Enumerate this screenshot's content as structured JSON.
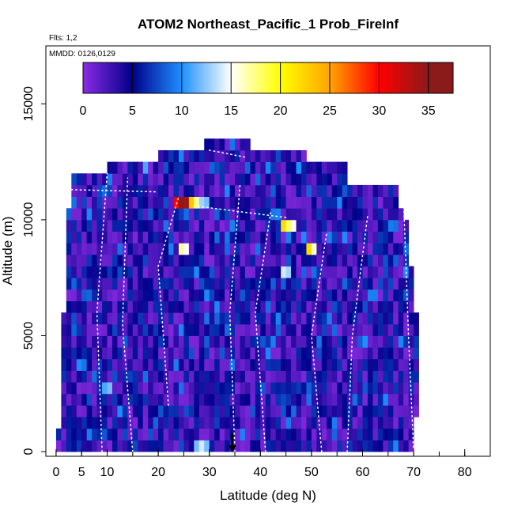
{
  "chart_data": {
    "type": "heatmap",
    "title": "ATOM2 Northeast_Pacific_1 Prob_FireInf",
    "annotations": {
      "flights": "Flts: 1,2",
      "dates": "MMDD: 0126,0129"
    },
    "xlabel": "Latitude (deg N)",
    "ylabel": "Altitude (m)",
    "xlim": [
      -2,
      85
    ],
    "ylim": [
      -200,
      17500
    ],
    "x_ticks": [
      0,
      5,
      10,
      20,
      30,
      40,
      50,
      60,
      70,
      80
    ],
    "y_ticks": [
      0,
      5000,
      10000,
      15000
    ],
    "x_minor_ticks": [
      0,
      5,
      10,
      15,
      20,
      25,
      30,
      35,
      40,
      45,
      50,
      55,
      60,
      65,
      70,
      75,
      80,
      85
    ],
    "colorbar": {
      "min": 0,
      "max": 37.5,
      "ticks": [
        0,
        5,
        10,
        15,
        20,
        25,
        30,
        35
      ],
      "boundaries": [
        0,
        5,
        10,
        15,
        20,
        25,
        30,
        35
      ],
      "colors": [
        "#8a2be2",
        "#00008b",
        "#1e90ff",
        "#ffffff",
        "#ffff00",
        "#ffa500",
        "#ff0000",
        "#8b1a1a"
      ]
    },
    "grid": false,
    "bin_size": {
      "lat": 1,
      "alt_m": 500
    },
    "extent": {
      "rows_alt_top": [
        0,
        500,
        1000,
        1500,
        2000,
        2500,
        3000,
        3500,
        4000,
        4500,
        5000,
        5500,
        6000,
        6500,
        7000,
        7500,
        8000,
        8500,
        9000,
        9500,
        10000,
        10500,
        11000,
        11500,
        12000,
        12500,
        13000
      ],
      "lat_min": [
        0,
        0,
        1,
        1,
        1,
        1,
        1,
        1,
        1,
        1,
        1,
        1,
        2,
        2,
        2,
        2,
        2,
        2,
        2,
        2,
        2,
        3,
        3,
        3,
        10,
        20,
        29
      ],
      "lat_max": [
        70,
        70,
        70,
        71,
        71,
        71,
        71,
        71,
        71,
        71,
        71,
        71,
        70,
        70,
        70,
        70,
        69,
        69,
        69,
        69,
        68,
        67,
        67,
        57,
        57,
        49,
        38
      ]
    },
    "hotspots": [
      {
        "lat": 23,
        "alt": 10500,
        "value": 30
      },
      {
        "lat": 24,
        "alt": 10500,
        "value": 37
      },
      {
        "lat": 25,
        "alt": 10500,
        "value": 34
      },
      {
        "lat": 26,
        "alt": 10500,
        "value": 23
      },
      {
        "lat": 27,
        "alt": 10500,
        "value": 17
      },
      {
        "lat": 28,
        "alt": 10500,
        "value": 13
      },
      {
        "lat": 29,
        "alt": 10500,
        "value": 12
      },
      {
        "lat": 44,
        "alt": 9500,
        "value": 22
      },
      {
        "lat": 45,
        "alt": 9500,
        "value": 18
      },
      {
        "lat": 46,
        "alt": 9500,
        "value": 15
      },
      {
        "lat": 24,
        "alt": 8500,
        "value": 17
      },
      {
        "lat": 25,
        "alt": 8500,
        "value": 15
      },
      {
        "lat": 49,
        "alt": 8500,
        "value": 22
      },
      {
        "lat": 50,
        "alt": 8500,
        "value": 16
      },
      {
        "lat": 44,
        "alt": 7500,
        "value": 14
      },
      {
        "lat": 45,
        "alt": 7500,
        "value": 13
      },
      {
        "lat": 9,
        "alt": 2500,
        "value": 11
      },
      {
        "lat": 10,
        "alt": 2500,
        "value": 12
      },
      {
        "lat": 27,
        "alt": 0,
        "value": 12
      },
      {
        "lat": 28,
        "alt": 0,
        "value": 14
      },
      {
        "lat": 29,
        "alt": 0,
        "value": 12
      },
      {
        "lat": 17,
        "alt": 12000,
        "value": 11
      }
    ],
    "marker": {
      "lat": 34.5,
      "alt": 0
    }
  }
}
